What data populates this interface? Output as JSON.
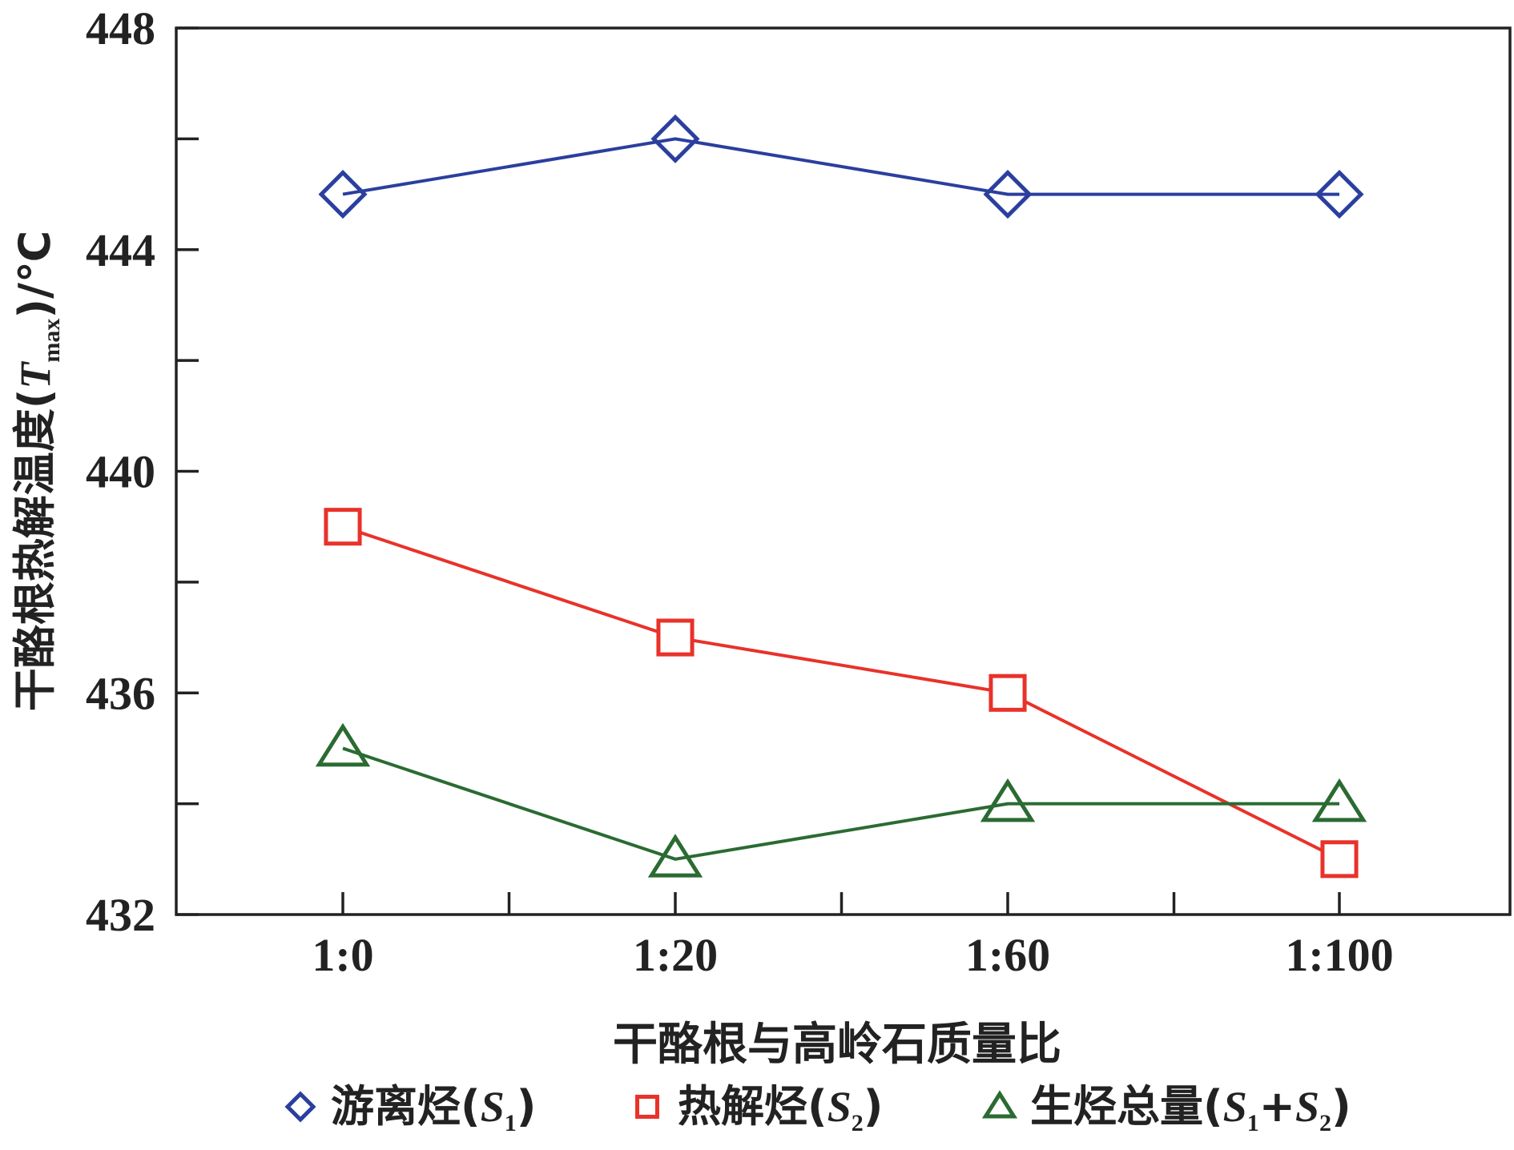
{
  "chart_data": {
    "type": "line",
    "categories": [
      "1:0",
      "1:20",
      "1:60",
      "1:100"
    ],
    "xlabel": "干酪根与高岭石质量比",
    "ylabel_main": "干酪根热解温度(",
    "ylabel_var": "T",
    "ylabel_sub": "max",
    "ylabel_end": ")/℃",
    "ylim": [
      432,
      448
    ],
    "yticks_major": [
      432,
      436,
      440,
      444,
      448
    ],
    "yticks_minor": [
      434,
      438,
      442,
      446
    ],
    "grid": false,
    "legend_position": "bottom",
    "series": [
      {
        "name": "游离烃",
        "legend_var": "S",
        "legend_sub": "1",
        "legend_suffix": "",
        "marker": "diamond",
        "color": "#2a3f9e",
        "values": [
          445,
          446,
          445,
          445
        ]
      },
      {
        "name": "热解烃",
        "legend_var": "S",
        "legend_sub": "2",
        "legend_suffix": "",
        "marker": "square",
        "color": "#e8322a",
        "values": [
          439,
          437,
          436,
          433
        ]
      },
      {
        "name": "生烃总量",
        "legend_var": "S",
        "legend_sub": "1",
        "legend_suffix": "+",
        "legend_var2": "S",
        "legend_sub2": "2",
        "marker": "triangle",
        "color": "#2a6b32",
        "values": [
          435,
          433,
          434,
          434
        ]
      }
    ]
  }
}
